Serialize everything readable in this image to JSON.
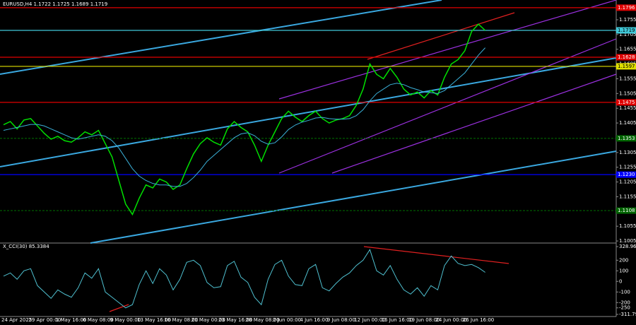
{
  "chart_data": [
    {
      "type": "line",
      "title": "EURUSD,H4  1.1722 1.1725 1.1689 1.1719",
      "ylim": [
        1.0998,
        1.1822
      ],
      "yticks": [
        1.1755,
        1.1705,
        1.1655,
        1.1605,
        1.1555,
        1.1505,
        1.1455,
        1.1405,
        1.1355,
        1.1305,
        1.1255,
        1.1205,
        1.1155,
        1.1105,
        1.1055,
        1.1005
      ],
      "series": [
        {
          "name": "EURUSD",
          "color": "#00e000",
          "values": [
            1.1399,
            1.141,
            1.1385,
            1.1415,
            1.142,
            1.1395,
            1.137,
            1.135,
            1.136,
            1.1345,
            1.134,
            1.1355,
            1.1375,
            1.1365,
            1.138,
            1.1335,
            1.129,
            1.121,
            1.113,
            1.1095,
            1.115,
            1.1195,
            1.1185,
            1.1215,
            1.1205,
            1.118,
            1.1195,
            1.125,
            1.13,
            1.1335,
            1.1355,
            1.134,
            1.133,
            1.1385,
            1.141,
            1.139,
            1.1375,
            1.133,
            1.1275,
            1.133,
            1.1375,
            1.142,
            1.1445,
            1.1425,
            1.141,
            1.143,
            1.1445,
            1.142,
            1.1405,
            1.1415,
            1.142,
            1.143,
            1.1465,
            1.152,
            1.1605,
            1.157,
            1.1555,
            1.159,
            1.156,
            1.152,
            1.15,
            1.151,
            1.149,
            1.1515,
            1.15,
            1.156,
            1.1605,
            1.162,
            1.165,
            1.1715,
            1.174,
            1.1719
          ]
        },
        {
          "name": "MA",
          "color": "#3ab0d8",
          "values": [
            1.138,
            1.1385,
            1.139,
            1.1395,
            1.14,
            1.14,
            1.1395,
            1.1385,
            1.1375,
            1.1365,
            1.1355,
            1.135,
            1.1355,
            1.136,
            1.1365,
            1.136,
            1.1345,
            1.132,
            1.1285,
            1.125,
            1.1225,
            1.121,
            1.12,
            1.1195,
            1.1195,
            1.119,
            1.119,
            1.12,
            1.122,
            1.1245,
            1.1275,
            1.1295,
            1.1315,
            1.1335,
            1.1355,
            1.1368,
            1.1372,
            1.1362,
            1.1343,
            1.1333,
            1.1338,
            1.1358,
            1.1383,
            1.1398,
            1.1408,
            1.1414,
            1.1422,
            1.1424,
            1.142,
            1.1418,
            1.1418,
            1.142,
            1.143,
            1.145,
            1.148,
            1.1505,
            1.152,
            1.1535,
            1.154,
            1.1535,
            1.1525,
            1.1518,
            1.151,
            1.1508,
            1.1505,
            1.1515,
            1.1535,
            1.1555,
            1.1575,
            1.1605,
            1.1635,
            1.166
          ]
        }
      ],
      "levels": [
        {
          "value": 1.1796,
          "label": "1.1796",
          "color": "#e00000"
        },
        {
          "value": 1.1719,
          "label": "1.1719",
          "color": "#40c8d8"
        },
        {
          "value": 1.1628,
          "label": "1.1628",
          "color": "#e00000"
        },
        {
          "value": 1.1597,
          "label": "1.1597",
          "color": "#e0e000"
        },
        {
          "value": 1.1475,
          "label": "1.1475",
          "color": "#e00000"
        },
        {
          "value": 1.1353,
          "label": "1.1353",
          "color": "#006400"
        },
        {
          "value": 1.123,
          "label": "1.1230",
          "color": "#0000ff"
        },
        {
          "value": 1.1108,
          "label": "1.1108",
          "color": "#006400"
        }
      ]
    },
    {
      "type": "line",
      "title": "X_CCI(30) 85.3384",
      "ylim": [
        -311.7988,
        328.9647
      ],
      "yticks": [
        328.9647,
        200,
        100,
        0,
        -100,
        -200,
        -250,
        -311.7988
      ],
      "categories": [
        "24 Apr 2025",
        null,
        null,
        null,
        "29 Apr 00:00",
        null,
        null,
        null,
        "1 May 16:00",
        null,
        null,
        null,
        "6 May 08:00",
        null,
        null,
        null,
        "9 May 00:00",
        null,
        null,
        null,
        "13 May 16:00",
        null,
        null,
        null,
        "16 May 08:00",
        null,
        null,
        null,
        "21 May 00:00",
        null,
        null,
        null,
        "23 May 16:00",
        null,
        null,
        null,
        "28 May 08:00",
        null,
        null,
        null,
        "2 Jun 00:00",
        null,
        null,
        null,
        "4 Jun 16:00",
        null,
        null,
        null,
        "9 Jun 08:00",
        null,
        null,
        null,
        "12 Jun 00:00",
        null,
        null,
        null,
        "16 Jun 16:00",
        null,
        null,
        null,
        "19 Jun 08:00",
        null,
        null,
        null,
        "24 Jun 00:00",
        null,
        null,
        null,
        "26 Jun 16:00",
        null,
        null,
        null
      ],
      "series": [
        {
          "name": "CCI",
          "color": "#4fc0d0",
          "values": [
            50,
            80,
            20,
            100,
            120,
            -40,
            -100,
            -160,
            -80,
            -120,
            -150,
            -60,
            80,
            30,
            120,
            -100,
            -150,
            -200,
            -250,
            -220,
            -30,
            100,
            -20,
            120,
            60,
            -80,
            20,
            180,
            200,
            150,
            -10,
            -60,
            -50,
            150,
            190,
            40,
            -10,
            -150,
            -220,
            20,
            160,
            200,
            50,
            -30,
            -40,
            120,
            160,
            -60,
            -90,
            -20,
            40,
            80,
            150,
            200,
            300,
            100,
            60,
            150,
            20,
            -80,
            -120,
            -60,
            -140,
            -40,
            -80,
            150,
            240,
            170,
            150,
            160,
            130,
            85.3384
          ]
        }
      ]
    }
  ]
}
